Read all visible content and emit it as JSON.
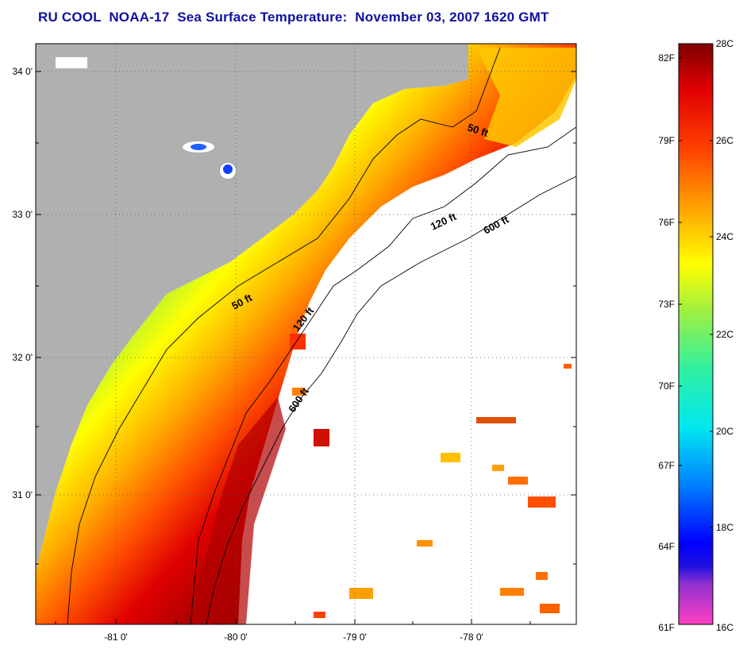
{
  "title": "RU COOL  NOAA-17  Sea Surface Temperature:  November 03, 2007 1620 GMT",
  "map": {
    "lon_ticks": [
      "-81 0'",
      "-80 0'",
      "-79 0'",
      "-78 0'"
    ],
    "lat_ticks": [
      "34 0'",
      "33 0'",
      "32 0'",
      "31 0'"
    ],
    "contours": [
      {
        "label": "50 ft",
        "name": "contour-label-50ft-north"
      },
      {
        "label": "120 ft",
        "name": "contour-label-120ft-north"
      },
      {
        "label": "600 ft",
        "name": "contour-label-600ft-north"
      },
      {
        "label": "50 ft",
        "name": "contour-label-50ft-south"
      },
      {
        "label": "120 ft",
        "name": "contour-label-120ft-south"
      },
      {
        "label": "600 ft",
        "name": "contour-label-600ft-south"
      }
    ],
    "colors": {
      "land": "#b0b0b0",
      "no_data": "#ffffff",
      "grid": "#555555"
    }
  },
  "colorbar": {
    "fahrenheit_labels": [
      "82F",
      "79F",
      "76F",
      "73F",
      "70F",
      "67F",
      "64F",
      "61F"
    ],
    "celsius_labels": [
      "28C",
      "26C",
      "24C",
      "22C",
      "20C",
      "18C",
      "16C"
    ],
    "range_c": [
      16,
      28
    ],
    "colors": [
      "#ff40c0",
      "#8020d0",
      "#0000ff",
      "#0080ff",
      "#00e0f0",
      "#40e080",
      "#c0f020",
      "#ffff00",
      "#ffa000",
      "#ff4000",
      "#e00000",
      "#800000"
    ]
  }
}
